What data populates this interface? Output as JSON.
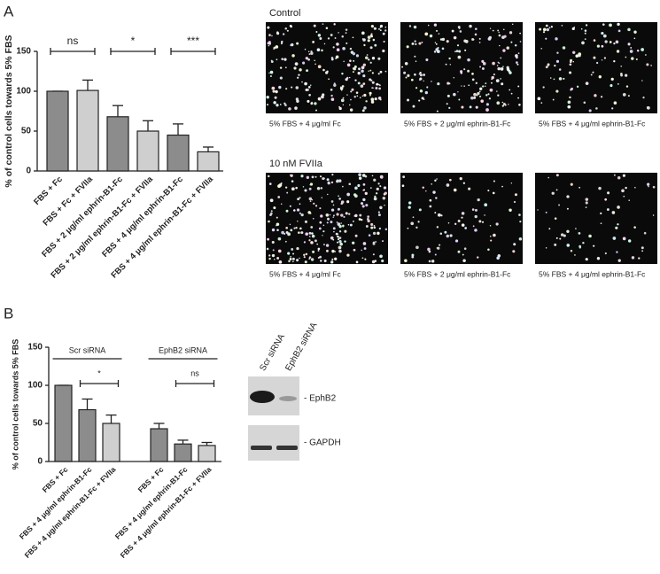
{
  "panel_labels": [
    "A",
    "B"
  ],
  "chart_data": [
    {
      "type": "bar",
      "y_label": "% of control cells towards 5% FBS",
      "categories": [
        "FBS + Fc",
        "FBS + Fc + FVIIa",
        "FBS + 2 μg/ml ephrin-B1-Fc",
        "FBS + 2 μg/ml ephrin-B1-Fc + FVIIa",
        "FBS + 4 μg/ml ephrin-B1-Fc",
        "FBS + 4 μg/ml ephrin-B1-Fc + FVIIa"
      ],
      "values": [
        100,
        101,
        68,
        50,
        45,
        24
      ],
      "errors": [
        0,
        13,
        14,
        13,
        14,
        6
      ],
      "colors": [
        "#8c8c8c",
        "#cfcfcf",
        "#8c8c8c",
        "#cfcfcf",
        "#8c8c8c",
        "#cfcfcf"
      ],
      "ylim": [
        0,
        150
      ],
      "yticks": [
        0,
        50,
        100,
        150
      ],
      "annotations": [
        "ns",
        "*",
        "***"
      ]
    },
    {
      "type": "bar",
      "y_label": "% of control cells towards 5% FBS",
      "groups": [
        "Scr siRNA",
        "EphB2 siRNA"
      ],
      "categories": [
        "FBS + Fc",
        "FBS + 4 μg/ml ephrin-B1-Fc",
        "FBS + 4 μg/ml ephrin-B1-Fc + FVIIa",
        null,
        "FBS + Fc",
        "FBS + 4 μg/ml ephrin-B1-Fc",
        "FBS + 4 μg/ml ephrin-B1-Fc + FVIIa"
      ],
      "values": [
        100,
        68,
        50,
        null,
        43,
        23,
        21
      ],
      "errors": [
        0,
        14,
        11,
        null,
        7,
        5,
        4
      ],
      "colors": [
        "#8c8c8c",
        "#8c8c8c",
        "#cfcfcf",
        null,
        "#8c8c8c",
        "#8c8c8c",
        "#cfcfcf"
      ],
      "ylim": [
        0,
        150
      ],
      "yticks": [
        0,
        50,
        100,
        150
      ],
      "annotations": [
        "*",
        "ns"
      ]
    }
  ],
  "micrographs": [
    {
      "title": "Control",
      "captions": [
        "5% FBS + 4 μg/ml Fc",
        "5% FBS + 2 μg/ml ephrin-B1-Fc",
        "5% FBS + 4 μg/ml ephrin-B1-Fc"
      ]
    },
    {
      "title": "10 nM FVIIa",
      "captions": [
        "5% FBS + 4 μg/ml Fc",
        "5% FBS + 2 μg/ml ephrin-B1-Fc",
        "5% FBS + 4 μg/ml ephrin-B1-Fc"
      ]
    }
  ],
  "blot": {
    "lanes": [
      "Scr siRNA",
      "EphB2 siRNA"
    ],
    "bands": [
      "- EphB2",
      "- GAPDH"
    ]
  }
}
